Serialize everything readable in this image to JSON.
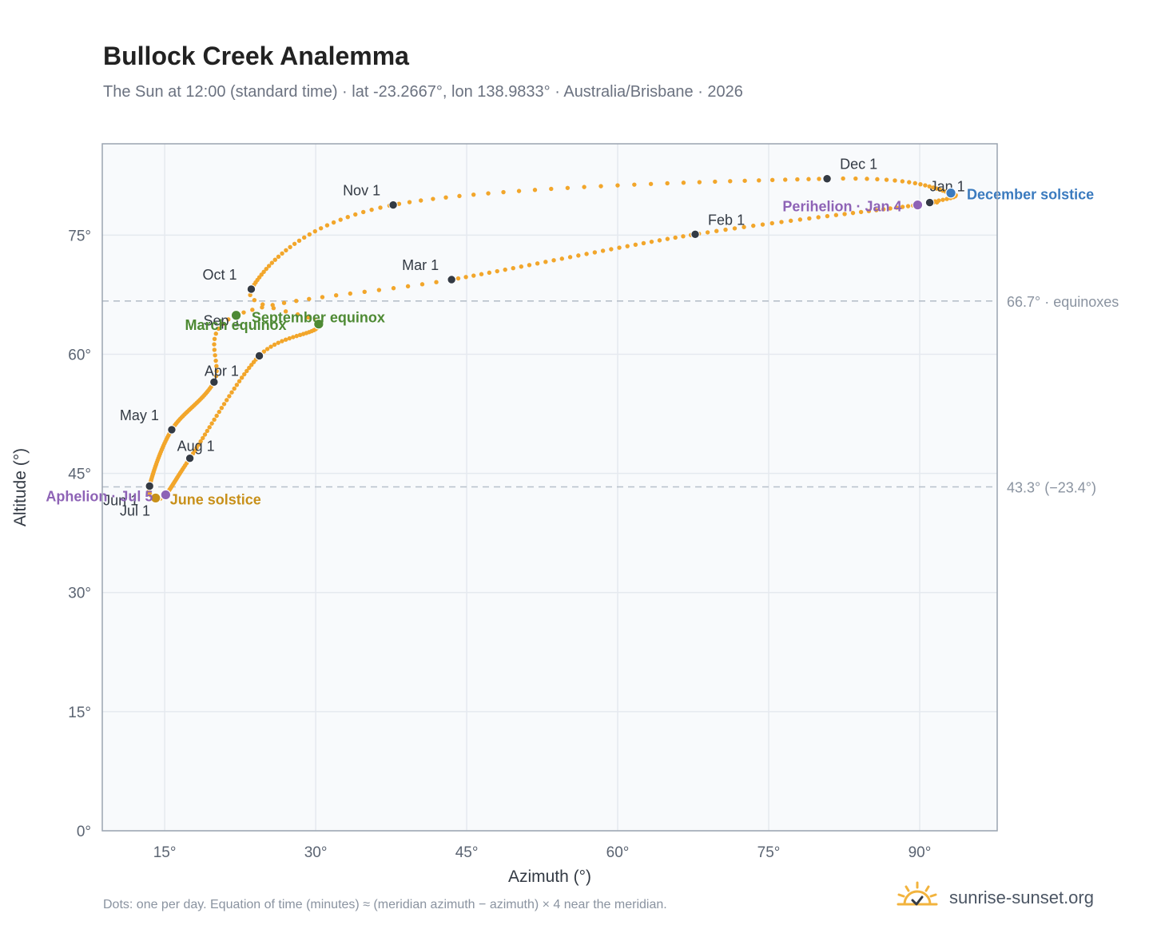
{
  "title": "Bullock Creek Analemma",
  "subtitle": "The Sun at 12:00 (standard time) · lat -23.2667°, lon 138.9833° · Australia/Brisbane · 2026",
  "footnote": "Dots: one per day. Equation of time (minutes) ≈ (meridian azimuth − azimuth) × 4 near the meridian.",
  "brand": {
    "text": "sunrise-sunset.org",
    "icon": "sun-logo-icon"
  },
  "colors": {
    "curve": "#f2a62b",
    "month_marker": "#333a44",
    "solstice_june": "#c8901a",
    "solstice_december": "#3b7bbf",
    "equinox": "#4e8a34",
    "apsis": "#8e63b6",
    "reference_line": "#b7c0ca",
    "plot_background": "#f8fafc",
    "grid": "#e5e9ef"
  },
  "chart_data": {
    "type": "scatter",
    "xlabel": "Azimuth (°)",
    "ylabel": "Altitude (°)",
    "xlim": [
      8.8,
      97.7
    ],
    "ylim": [
      0,
      86.5
    ],
    "x_ticks": [
      15,
      30,
      45,
      60,
      75,
      90
    ],
    "x_tick_labels": [
      "15°",
      "30°",
      "45°",
      "60°",
      "75°",
      "90°"
    ],
    "y_ticks": [
      0,
      15,
      30,
      45,
      60,
      75
    ],
    "y_tick_labels": [
      "0°",
      "15°",
      "30°",
      "45°",
      "60°",
      "75°"
    ],
    "grid": true,
    "reference_lines": [
      {
        "y": 66.7,
        "label": "66.7° · equinoxes"
      },
      {
        "y": 43.3,
        "label": "43.3° (−23.4°)"
      }
    ],
    "month_markers": [
      {
        "label": "Jan 1",
        "az": 91.0,
        "alt": 79.1
      },
      {
        "label": "Feb 1",
        "az": 67.7,
        "alt": 75.1
      },
      {
        "label": "Mar 1",
        "az": 43.5,
        "alt": 69.4
      },
      {
        "label": "Apr 1",
        "az": 19.9,
        "alt": 56.5
      },
      {
        "label": "May 1",
        "az": 15.7,
        "alt": 50.5
      },
      {
        "label": "Jun 1",
        "az": 13.5,
        "alt": 43.4
      },
      {
        "label": "Jul 1",
        "az": 14.2,
        "alt": 41.9
      },
      {
        "label": "Aug 1",
        "az": 17.5,
        "alt": 46.9
      },
      {
        "label": "Sep 1",
        "az": 24.4,
        "alt": 59.8
      },
      {
        "label": "Oct 1",
        "az": 23.6,
        "alt": 68.2
      },
      {
        "label": "Nov 1",
        "az": 37.7,
        "alt": 78.8
      },
      {
        "label": "Dec 1",
        "az": 80.8,
        "alt": 82.1
      }
    ],
    "events": [
      {
        "label": "December solstice",
        "az": 93.1,
        "alt": 80.3,
        "color_key": "solstice_december"
      },
      {
        "label": "June solstice",
        "az": 14.1,
        "alt": 41.9,
        "color_key": "solstice_june"
      },
      {
        "label": "March equinox",
        "az": 22.1,
        "alt": 64.9,
        "color_key": "equinox"
      },
      {
        "label": "September equinox",
        "az": 30.3,
        "alt": 63.8,
        "color_key": "equinox"
      },
      {
        "label": "Perihelion · Jan 4",
        "az": 89.8,
        "alt": 78.8,
        "color_key": "apsis"
      },
      {
        "label": "Aphelion · Jul 5",
        "az": 15.1,
        "alt": 42.3,
        "color_key": "apsis"
      }
    ]
  }
}
